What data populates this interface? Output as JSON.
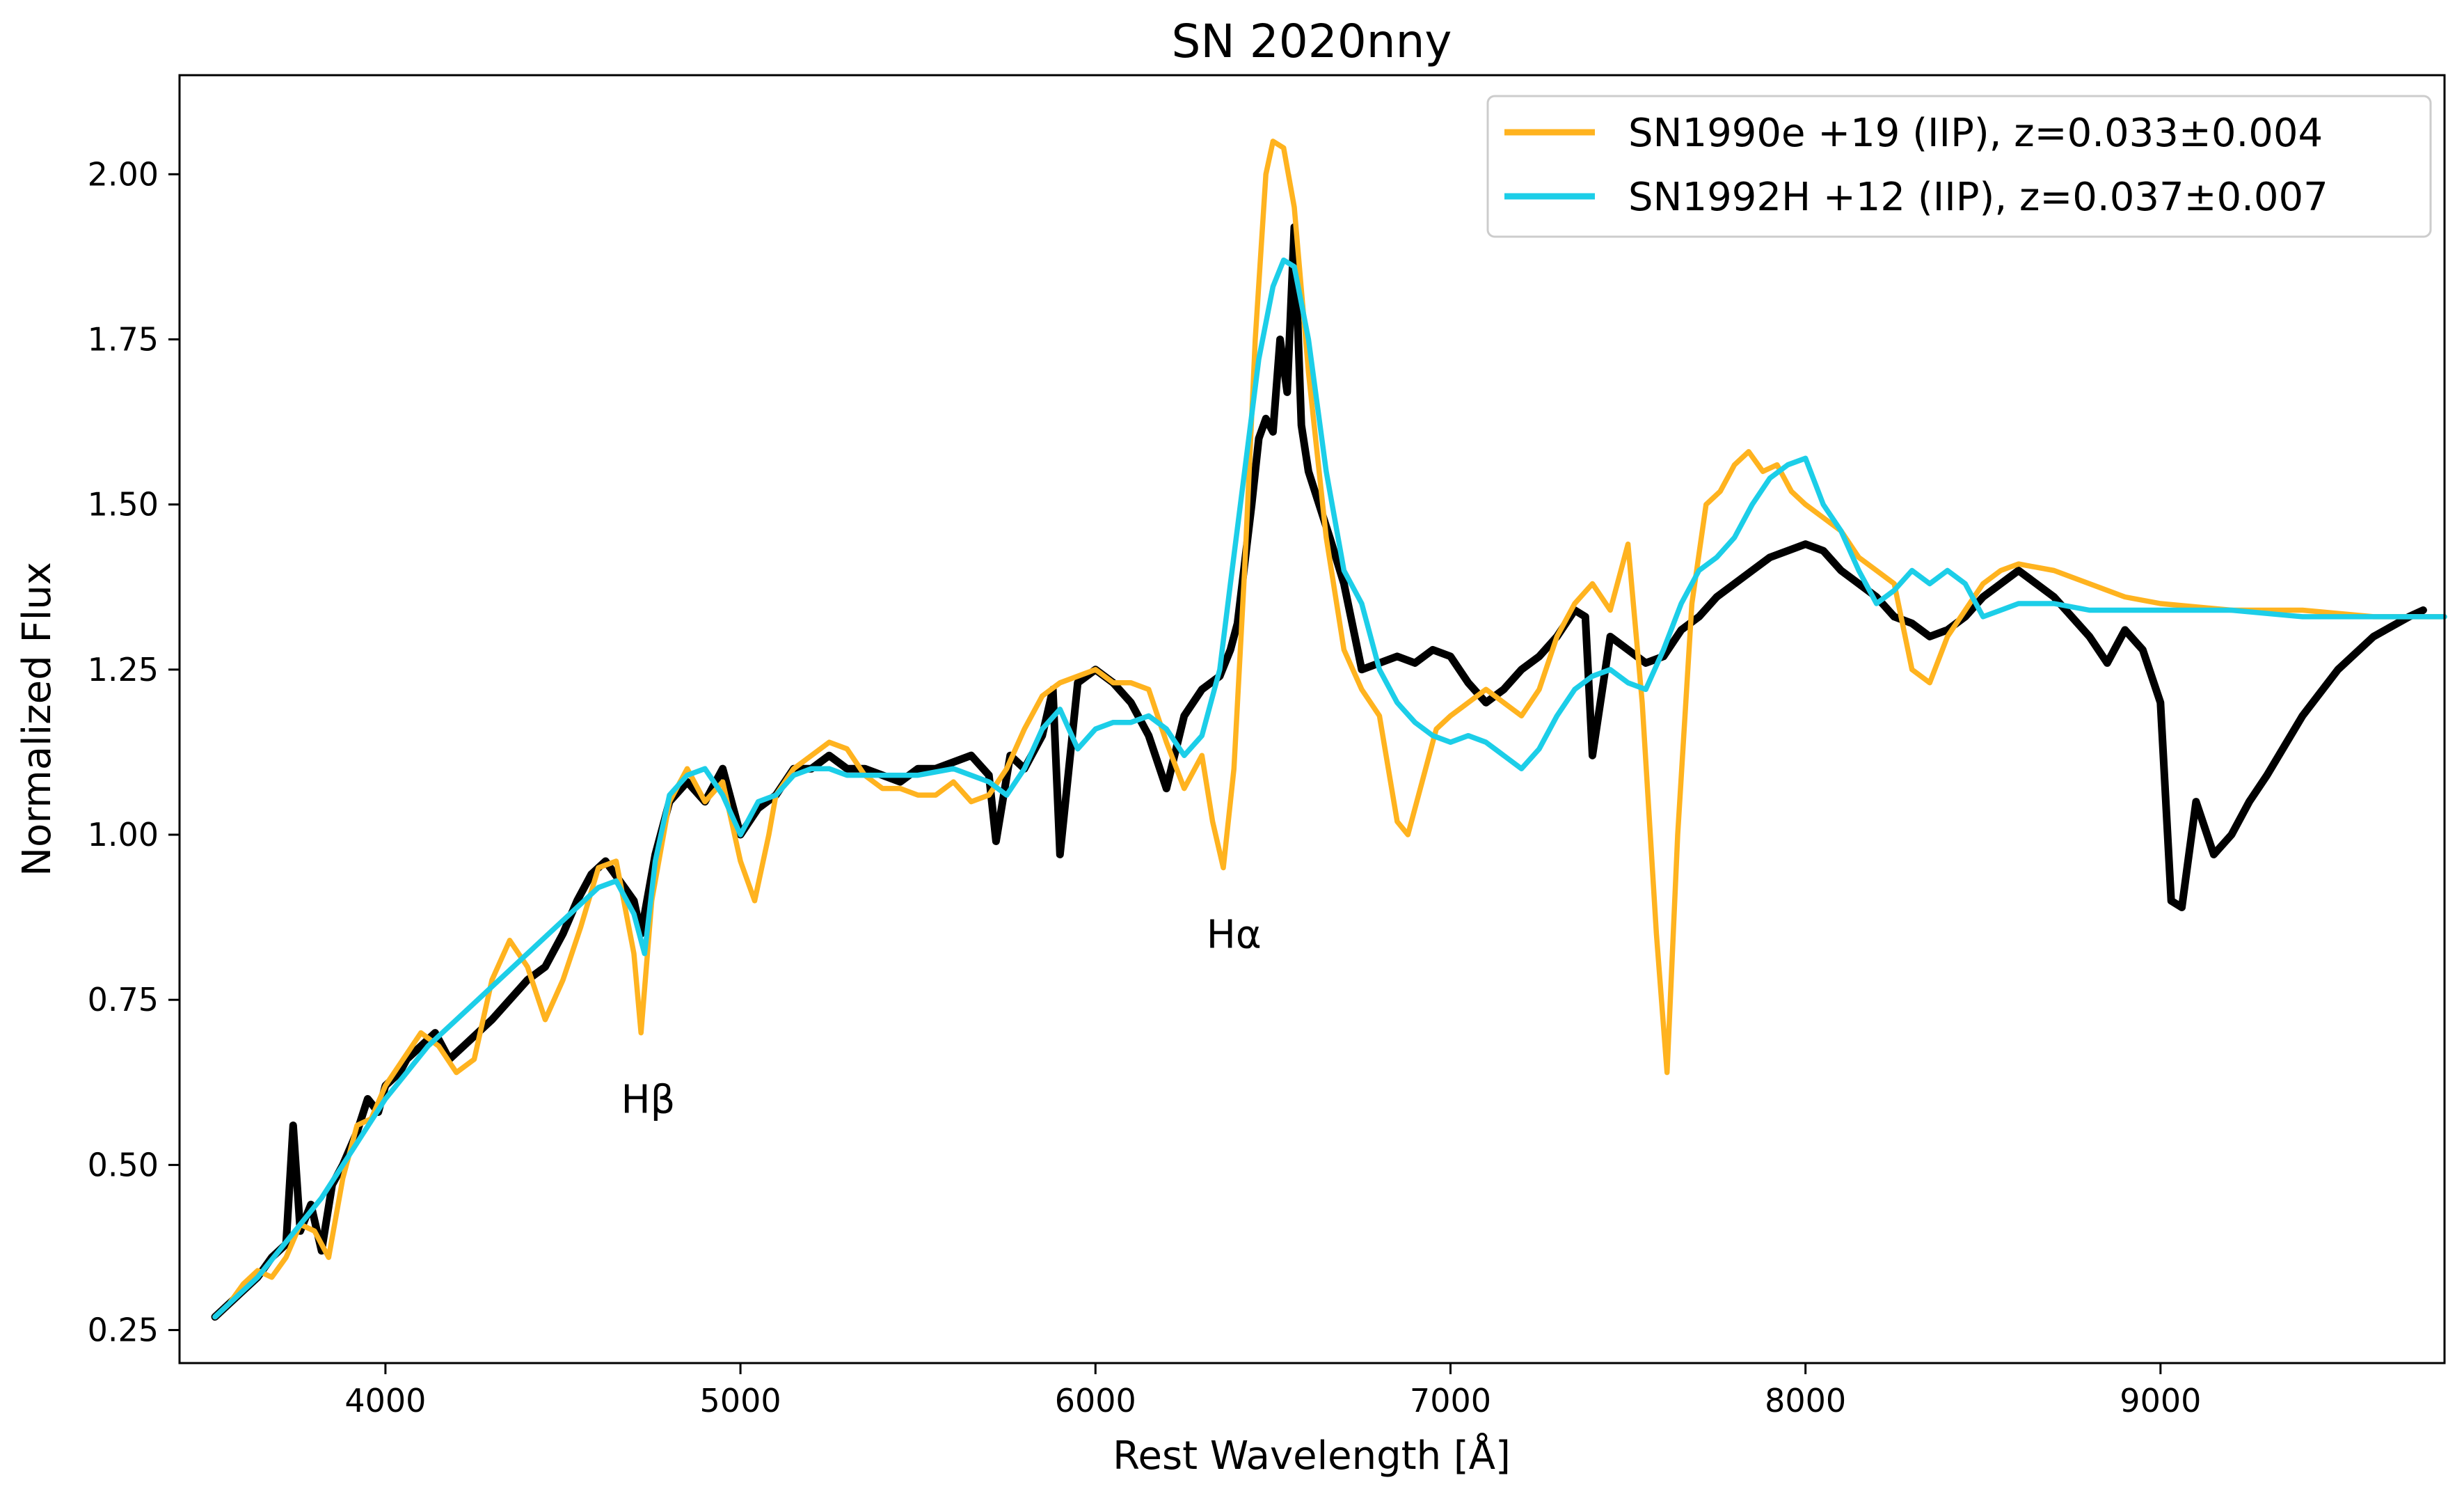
{
  "chart_data": {
    "type": "line",
    "title": "SN 2020nny",
    "xlabel": "Rest Wavelength [Å]",
    "ylabel": "Normalized Flux",
    "xlim": [
      3420,
      9800
    ],
    "ylim": [
      0.2,
      2.15
    ],
    "xticks": [
      4000,
      5000,
      6000,
      7000,
      8000,
      9000
    ],
    "xtick_labels": [
      "4000",
      "5000",
      "6000",
      "7000",
      "8000",
      "9000"
    ],
    "yticks": [
      0.25,
      0.5,
      0.75,
      1.0,
      1.25,
      1.5,
      1.75,
      2.0
    ],
    "ytick_labels": [
      "0.25",
      "0.50",
      "0.75",
      "1.00",
      "1.25",
      "1.50",
      "1.75",
      "2.00"
    ],
    "grid": false,
    "legend_position": "top-right",
    "annotations": [
      {
        "text": "Hβ",
        "x": 4740,
        "y": 0.6
      },
      {
        "text": "Hα",
        "x": 6390,
        "y": 0.85
      }
    ],
    "series": [
      {
        "name": "",
        "role": "observed",
        "color": "#000000",
        "x": [
          3520,
          3560,
          3600,
          3640,
          3680,
          3720,
          3740,
          3760,
          3790,
          3820,
          3850,
          3880,
          3920,
          3950,
          3980,
          4000,
          4040,
          4060,
          4100,
          4140,
          4180,
          4220,
          4260,
          4300,
          4350,
          4400,
          4450,
          4500,
          4540,
          4580,
          4620,
          4660,
          4700,
          4720,
          4760,
          4800,
          4850,
          4900,
          4950,
          5000,
          5050,
          5100,
          5150,
          5200,
          5250,
          5300,
          5350,
          5400,
          5450,
          5500,
          5550,
          5600,
          5650,
          5700,
          5720,
          5760,
          5800,
          5850,
          5880,
          5900,
          5950,
          6000,
          6050,
          6100,
          6150,
          6200,
          6250,
          6300,
          6350,
          6380,
          6400,
          6420,
          6440,
          6460,
          6480,
          6500,
          6520,
          6540,
          6560,
          6580,
          6600,
          6630,
          6660,
          6700,
          6750,
          6800,
          6850,
          6900,
          6950,
          7000,
          7050,
          7100,
          7150,
          7200,
          7250,
          7300,
          7350,
          7380,
          7400,
          7450,
          7500,
          7550,
          7600,
          7650,
          7700,
          7750,
          7800,
          7850,
          7900,
          7950,
          8000,
          8050,
          8100,
          8150,
          8200,
          8250,
          8300,
          8350,
          8400,
          8450,
          8500,
          8550,
          8600,
          8650,
          8700,
          8750,
          8800,
          8850,
          8900,
          8950,
          9000,
          9030,
          9060,
          9100,
          9150,
          9200,
          9250,
          9300,
          9400,
          9500,
          9600,
          9700,
          9740
        ],
        "y": [
          0.27,
          0.29,
          0.31,
          0.33,
          0.36,
          0.38,
          0.56,
          0.4,
          0.44,
          0.37,
          0.47,
          0.5,
          0.55,
          0.6,
          0.58,
          0.62,
          0.64,
          0.66,
          0.68,
          0.7,
          0.66,
          0.68,
          0.7,
          0.72,
          0.75,
          0.78,
          0.8,
          0.85,
          0.9,
          0.94,
          0.96,
          0.93,
          0.9,
          0.85,
          0.97,
          1.05,
          1.08,
          1.05,
          1.1,
          1.0,
          1.04,
          1.06,
          1.1,
          1.1,
          1.12,
          1.1,
          1.1,
          1.09,
          1.08,
          1.1,
          1.1,
          1.11,
          1.12,
          1.09,
          0.99,
          1.12,
          1.1,
          1.15,
          1.22,
          0.97,
          1.23,
          1.25,
          1.23,
          1.2,
          1.15,
          1.07,
          1.18,
          1.22,
          1.24,
          1.28,
          1.32,
          1.41,
          1.5,
          1.6,
          1.63,
          1.61,
          1.75,
          1.67,
          1.92,
          1.62,
          1.55,
          1.5,
          1.45,
          1.38,
          1.25,
          1.26,
          1.27,
          1.26,
          1.28,
          1.27,
          1.23,
          1.2,
          1.22,
          1.25,
          1.27,
          1.3,
          1.34,
          1.33,
          1.12,
          1.3,
          1.28,
          1.26,
          1.27,
          1.31,
          1.33,
          1.36,
          1.38,
          1.4,
          1.42,
          1.43,
          1.44,
          1.43,
          1.4,
          1.38,
          1.36,
          1.33,
          1.32,
          1.3,
          1.31,
          1.33,
          1.36,
          1.38,
          1.4,
          1.38,
          1.36,
          1.33,
          1.3,
          1.26,
          1.31,
          1.28,
          1.2,
          0.9,
          0.89,
          1.05,
          0.97,
          1.0,
          1.05,
          1.09,
          1.18,
          1.25,
          1.3,
          1.33,
          1.34
        ]
      },
      {
        "name": "SN1990e +19 (IIP), z=0.033±0.004",
        "role": "template",
        "color": "#ffb31f",
        "x": [
          3520,
          3560,
          3600,
          3640,
          3680,
          3720,
          3760,
          3800,
          3840,
          3880,
          3920,
          3960,
          4000,
          4050,
          4100,
          4150,
          4200,
          4250,
          4300,
          4350,
          4400,
          4450,
          4500,
          4550,
          4600,
          4650,
          4700,
          4720,
          4750,
          4800,
          4850,
          4900,
          4950,
          5000,
          5040,
          5080,
          5100,
          5150,
          5200,
          5250,
          5300,
          5350,
          5400,
          5450,
          5500,
          5550,
          5600,
          5650,
          5700,
          5750,
          5800,
          5850,
          5900,
          5950,
          6000,
          6050,
          6100,
          6150,
          6200,
          6250,
          6300,
          6330,
          6360,
          6390,
          6420,
          6450,
          6480,
          6500,
          6530,
          6560,
          6600,
          6650,
          6700,
          6750,
          6800,
          6850,
          6880,
          6920,
          6960,
          7000,
          7050,
          7100,
          7150,
          7200,
          7250,
          7300,
          7350,
          7400,
          7450,
          7500,
          7540,
          7580,
          7610,
          7640,
          7680,
          7720,
          7760,
          7800,
          7840,
          7880,
          7920,
          7960,
          8000,
          8050,
          8100,
          8150,
          8200,
          8250,
          8300,
          8350,
          8400,
          8450,
          8500,
          8550,
          8600,
          8700,
          8800,
          8900,
          9000,
          9200,
          9400,
          9600,
          9800
        ],
        "y": [
          0.27,
          0.29,
          0.32,
          0.34,
          0.33,
          0.36,
          0.41,
          0.4,
          0.36,
          0.48,
          0.56,
          0.57,
          0.62,
          0.66,
          0.7,
          0.68,
          0.64,
          0.66,
          0.78,
          0.84,
          0.8,
          0.72,
          0.78,
          0.86,
          0.95,
          0.96,
          0.82,
          0.7,
          0.9,
          1.05,
          1.1,
          1.05,
          1.08,
          0.96,
          0.9,
          1.0,
          1.06,
          1.1,
          1.12,
          1.14,
          1.13,
          1.09,
          1.07,
          1.07,
          1.06,
          1.06,
          1.08,
          1.05,
          1.06,
          1.1,
          1.16,
          1.21,
          1.23,
          1.24,
          1.25,
          1.23,
          1.23,
          1.22,
          1.14,
          1.07,
          1.12,
          1.02,
          0.95,
          1.1,
          1.4,
          1.75,
          2.0,
          2.05,
          2.04,
          1.95,
          1.7,
          1.45,
          1.28,
          1.22,
          1.18,
          1.02,
          1.0,
          1.08,
          1.16,
          1.18,
          1.2,
          1.22,
          1.2,
          1.18,
          1.22,
          1.3,
          1.35,
          1.38,
          1.34,
          1.44,
          1.2,
          0.85,
          0.64,
          1.0,
          1.35,
          1.5,
          1.52,
          1.56,
          1.58,
          1.55,
          1.56,
          1.52,
          1.5,
          1.48,
          1.46,
          1.42,
          1.4,
          1.38,
          1.25,
          1.23,
          1.3,
          1.34,
          1.38,
          1.4,
          1.41,
          1.4,
          1.38,
          1.36,
          1.35,
          1.34,
          1.34,
          1.33,
          1.33
        ]
      },
      {
        "name": "SN1992H +12 (IIP), z=0.037±0.007",
        "role": "template",
        "color": "#1ccee8",
        "x": [
          3520,
          3580,
          3640,
          3700,
          3760,
          3820,
          3880,
          3940,
          4000,
          4060,
          4120,
          4180,
          4240,
          4300,
          4360,
          4420,
          4480,
          4540,
          4600,
          4650,
          4700,
          4730,
          4760,
          4800,
          4850,
          4900,
          4950,
          5000,
          5050,
          5100,
          5150,
          5200,
          5250,
          5300,
          5400,
          5500,
          5600,
          5700,
          5750,
          5800,
          5850,
          5900,
          5950,
          6000,
          6050,
          6100,
          6150,
          6200,
          6250,
          6300,
          6350,
          6380,
          6420,
          6460,
          6500,
          6530,
          6560,
          6600,
          6650,
          6700,
          6750,
          6800,
          6850,
          6900,
          6950,
          7000,
          7050,
          7100,
          7150,
          7200,
          7250,
          7300,
          7350,
          7400,
          7450,
          7500,
          7550,
          7600,
          7650,
          7700,
          7750,
          7800,
          7850,
          7900,
          7950,
          8000,
          8050,
          8100,
          8150,
          8200,
          8250,
          8300,
          8350,
          8400,
          8450,
          8500,
          8550,
          8600,
          8700,
          8800,
          8900,
          9000,
          9200,
          9400,
          9600,
          9800
        ],
        "y": [
          0.27,
          0.3,
          0.33,
          0.37,
          0.41,
          0.45,
          0.5,
          0.55,
          0.6,
          0.64,
          0.68,
          0.71,
          0.74,
          0.77,
          0.8,
          0.83,
          0.86,
          0.89,
          0.92,
          0.93,
          0.88,
          0.82,
          0.96,
          1.06,
          1.09,
          1.1,
          1.06,
          1.0,
          1.05,
          1.06,
          1.09,
          1.1,
          1.1,
          1.09,
          1.09,
          1.09,
          1.1,
          1.08,
          1.06,
          1.1,
          1.16,
          1.19,
          1.13,
          1.16,
          1.17,
          1.17,
          1.18,
          1.16,
          1.12,
          1.15,
          1.25,
          1.38,
          1.55,
          1.72,
          1.83,
          1.87,
          1.86,
          1.75,
          1.55,
          1.4,
          1.35,
          1.25,
          1.2,
          1.17,
          1.15,
          1.14,
          1.15,
          1.14,
          1.12,
          1.1,
          1.13,
          1.18,
          1.22,
          1.24,
          1.25,
          1.23,
          1.22,
          1.28,
          1.35,
          1.4,
          1.42,
          1.45,
          1.5,
          1.54,
          1.56,
          1.57,
          1.5,
          1.46,
          1.4,
          1.35,
          1.37,
          1.4,
          1.38,
          1.4,
          1.38,
          1.33,
          1.34,
          1.35,
          1.35,
          1.34,
          1.34,
          1.34,
          1.34,
          1.33,
          1.33,
          1.33
        ]
      }
    ]
  }
}
